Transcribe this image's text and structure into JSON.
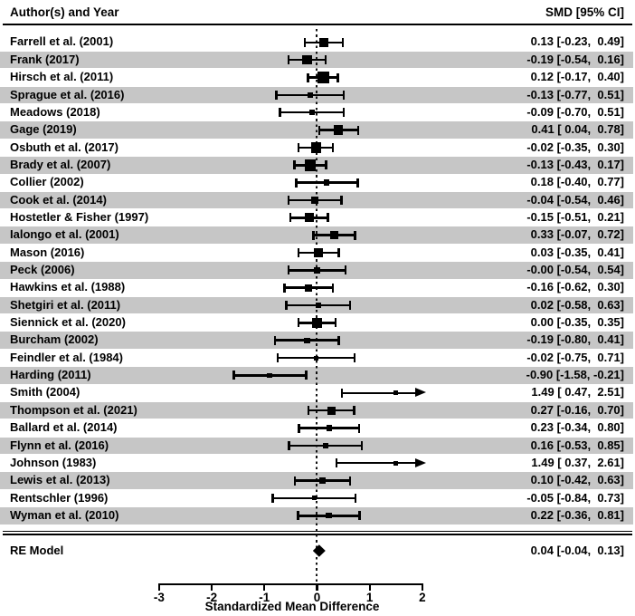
{
  "header": {
    "left": "Author(s) and Year",
    "right": "SMD [95% CI]"
  },
  "colors": {
    "stripe": "#c6c6c6",
    "ink": "#000000",
    "background": "#ffffff"
  },
  "chart_data": {
    "type": "scatter",
    "subtype": "forest-plot",
    "title": "",
    "xlabel": "Standardized Mean Difference",
    "xlim": [
      -3,
      2
    ],
    "xticks": [
      "-3",
      "-2",
      "-1",
      "0",
      "1",
      "2"
    ],
    "xtick_values": [
      -3,
      -2,
      -1,
      0,
      1,
      2
    ],
    "reference_line": 0,
    "grid": false,
    "columns": {
      "left": "Author(s) and Year",
      "right": "SMD [95% CI]"
    },
    "studies": [
      {
        "label": "Farrell et al. (2001)",
        "est": 0.13,
        "lo": -0.23,
        "hi": 0.49,
        "ci_text": "0.13 [-0.23,  0.49]"
      },
      {
        "label": "Frank (2017)",
        "est": -0.19,
        "lo": -0.54,
        "hi": 0.16,
        "ci_text": "-0.19 [-0.54,  0.16]"
      },
      {
        "label": "Hirsch et al. (2011)",
        "est": 0.12,
        "lo": -0.17,
        "hi": 0.4,
        "ci_text": "0.12 [-0.17,  0.40]"
      },
      {
        "label": "Sprague et al. (2016)",
        "est": -0.13,
        "lo": -0.77,
        "hi": 0.51,
        "ci_text": "-0.13 [-0.77,  0.51]"
      },
      {
        "label": "Meadows (2018)",
        "est": -0.09,
        "lo": -0.7,
        "hi": 0.51,
        "ci_text": "-0.09 [-0.70,  0.51]"
      },
      {
        "label": "Gage (2019)",
        "est": 0.41,
        "lo": 0.04,
        "hi": 0.78,
        "ci_text": "0.41 [ 0.04,  0.78]"
      },
      {
        "label": "Osbuth et al. (2017)",
        "est": -0.02,
        "lo": -0.35,
        "hi": 0.3,
        "ci_text": "-0.02 [-0.35,  0.30]"
      },
      {
        "label": "Brady et al. (2007)",
        "est": -0.13,
        "lo": -0.43,
        "hi": 0.17,
        "ci_text": "-0.13 [-0.43,  0.17]"
      },
      {
        "label": "Collier (2002)",
        "est": 0.18,
        "lo": -0.4,
        "hi": 0.77,
        "ci_text": "0.18 [-0.40,  0.77]"
      },
      {
        "label": "Cook et al. (2014)",
        "est": -0.04,
        "lo": -0.54,
        "hi": 0.46,
        "ci_text": "-0.04 [-0.54,  0.46]"
      },
      {
        "label": "Hostetler & Fisher (1997)",
        "est": -0.15,
        "lo": -0.51,
        "hi": 0.21,
        "ci_text": "-0.15 [-0.51,  0.21]"
      },
      {
        "label": "Ialongo et al. (2001)",
        "est": 0.33,
        "lo": -0.07,
        "hi": 0.72,
        "ci_text": "0.33 [-0.07,  0.72]"
      },
      {
        "label": "Mason (2016)",
        "est": 0.03,
        "lo": -0.35,
        "hi": 0.41,
        "ci_text": "0.03 [-0.35,  0.41]"
      },
      {
        "label": "Peck (2006)",
        "est": -0.0,
        "lo": -0.54,
        "hi": 0.54,
        "ci_text": "-0.00 [-0.54,  0.54]"
      },
      {
        "label": "Hawkins et al. (1988)",
        "est": -0.16,
        "lo": -0.62,
        "hi": 0.3,
        "ci_text": "-0.16 [-0.62,  0.30]"
      },
      {
        "label": "Shetgiri et al. (2011)",
        "est": 0.02,
        "lo": -0.58,
        "hi": 0.63,
        "ci_text": "0.02 [-0.58,  0.63]"
      },
      {
        "label": "Siennick et al. (2020)",
        "est": 0.0,
        "lo": -0.35,
        "hi": 0.35,
        "ci_text": "0.00 [-0.35,  0.35]"
      },
      {
        "label": "Burcham (2002)",
        "est": -0.19,
        "lo": -0.8,
        "hi": 0.41,
        "ci_text": "-0.19 [-0.80,  0.41]"
      },
      {
        "label": "Feindler et al. (1984)",
        "est": -0.02,
        "lo": -0.75,
        "hi": 0.71,
        "ci_text": "-0.02 [-0.75,  0.71]"
      },
      {
        "label": "Harding (2011)",
        "est": -0.9,
        "lo": -1.58,
        "hi": -0.21,
        "ci_text": "-0.90 [-1.58, -0.21]"
      },
      {
        "label": "Smith (2004)",
        "est": 1.49,
        "lo": 0.47,
        "hi": 2.51,
        "ci_text": "1.49 [ 0.47,  2.51]"
      },
      {
        "label": "Thompson et al. (2021)",
        "est": 0.27,
        "lo": -0.16,
        "hi": 0.7,
        "ci_text": "0.27 [-0.16,  0.70]"
      },
      {
        "label": "Ballard et al. (2014)",
        "est": 0.23,
        "lo": -0.34,
        "hi": 0.8,
        "ci_text": "0.23 [-0.34,  0.80]"
      },
      {
        "label": "Flynn et al. (2016)",
        "est": 0.16,
        "lo": -0.53,
        "hi": 0.85,
        "ci_text": "0.16 [-0.53,  0.85]"
      },
      {
        "label": "Johnson (1983)",
        "est": 1.49,
        "lo": 0.37,
        "hi": 2.61,
        "ci_text": "1.49 [ 0.37,  2.61]"
      },
      {
        "label": "Lewis et al. (2013)",
        "est": 0.1,
        "lo": -0.42,
        "hi": 0.63,
        "ci_text": "0.10 [-0.42,  0.63]"
      },
      {
        "label": "Rentschler (1996)",
        "est": -0.05,
        "lo": -0.84,
        "hi": 0.73,
        "ci_text": "-0.05 [-0.84,  0.73]"
      },
      {
        "label": "Wyman et al. (2010)",
        "est": 0.22,
        "lo": -0.36,
        "hi": 0.81,
        "ci_text": "0.22 [-0.36,  0.81]"
      }
    ],
    "summary": {
      "label": "RE Model",
      "est": 0.04,
      "lo": -0.04,
      "hi": 0.13,
      "ci_text": "0.04 [-0.04,  0.13]"
    }
  }
}
